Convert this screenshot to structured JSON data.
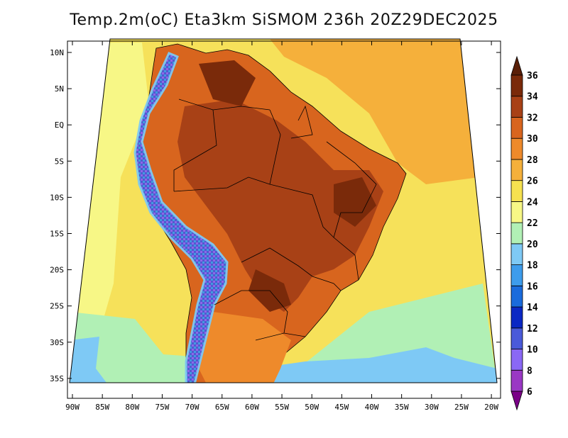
{
  "title": "Temp.2m(oC) Eta3km SiSMOM 236h 20Z29DEC2025",
  "map": {
    "lat_labels": [
      "10N",
      "5N",
      "EQ",
      "5S",
      "10S",
      "15S",
      "20S",
      "25S",
      "30S",
      "35S"
    ],
    "lon_labels": [
      "90W",
      "85W",
      "80W",
      "75W",
      "70W",
      "65W",
      "60W",
      "55W",
      "50W",
      "45W",
      "40W",
      "35W",
      "30W",
      "25W",
      "20W"
    ],
    "lat_range": [
      10,
      -38
    ],
    "lon_range": [
      -90,
      -20
    ]
  },
  "colorbar": {
    "levels": [
      "6",
      "8",
      "10",
      "12",
      "14",
      "16",
      "18",
      "20",
      "22",
      "24",
      "26",
      "28",
      "30",
      "32",
      "34",
      "36"
    ],
    "colors": [
      "#7a0087",
      "#9a38c4",
      "#8a68f5",
      "#4a5ad9",
      "#0b28c4",
      "#1a6bdc",
      "#3d9cec",
      "#7ec9f5",
      "#b1f0b5",
      "#f7f786",
      "#f6e150",
      "#f5b03b",
      "#ee8a2b",
      "#d8651e",
      "#a84116",
      "#7a2a0a",
      "#5a1f08"
    ]
  },
  "colors": {
    "ocean_north": "#f6e15a",
    "ocean_south_edge": "#b1f0b5",
    "ocean_south_cool": "#7ec9f5",
    "land_hot": "#d8651e",
    "land_hottest": "#a84116",
    "andes_cold": "#4a5ad9"
  }
}
